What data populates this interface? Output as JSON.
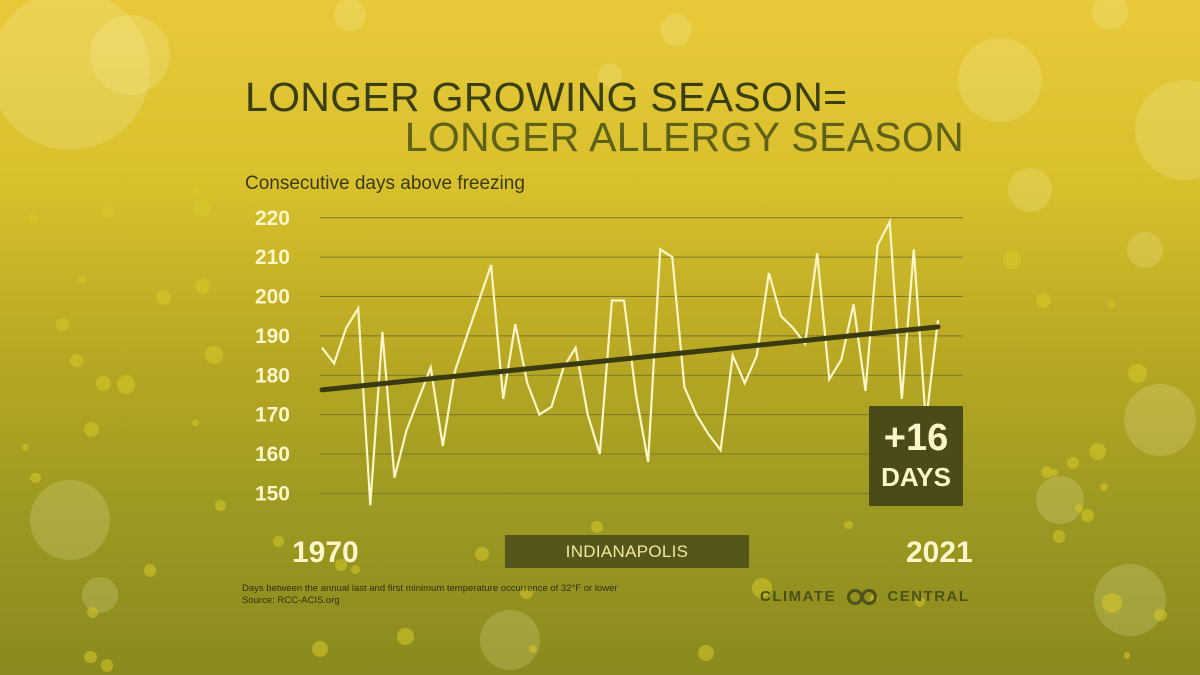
{
  "title": {
    "line1": "LONGER GROWING SEASON=",
    "line2": "LONGER ALLERGY SEASON"
  },
  "subtitle": "Consecutive days above freezing",
  "location": "INDIANAPOLIS",
  "callout": {
    "value": "+16",
    "unit": "DAYS"
  },
  "footnote": {
    "line1": "Days between the annual last and first minimum temperature occurrence of 32°F or lower",
    "line2": "Source: RCC-ACIS.org"
  },
  "logo": {
    "left": "CLIMATE",
    "right": "CENTRAL"
  },
  "colors": {
    "series_line": "#fdf6c8",
    "trend_line": "#3a3a10",
    "grid": "#7a7a2a",
    "callout_bg": "#4a4b16"
  },
  "chart_data": {
    "type": "line",
    "title": "LONGER GROWING SEASON= LONGER ALLERGY SEASON",
    "ylabel": "Consecutive days above freezing",
    "xlabel": "",
    "x_start_label": "1970",
    "x_end_label": "2021",
    "xlim": [
      1970,
      2021
    ],
    "ylim": [
      145,
      222
    ],
    "yticks": [
      150,
      160,
      170,
      180,
      190,
      200,
      210,
      220
    ],
    "grid": true,
    "series": [
      {
        "x": [
          1970,
          1971,
          1972,
          1973,
          1974,
          1975,
          1976,
          1977,
          1978,
          1979,
          1980,
          1981,
          1982,
          1983,
          1984,
          1985,
          1986,
          1987,
          1988,
          1989,
          1990,
          1991,
          1992,
          1993,
          1994,
          1995,
          1996,
          1997,
          1998,
          1999,
          2000,
          2001,
          2002,
          2003,
          2004,
          2005,
          2006,
          2007,
          2008,
          2009,
          2010,
          2011,
          2012,
          2013,
          2014,
          2015,
          2016,
          2017,
          2018,
          2019,
          2020,
          2021
        ],
        "values": [
          187,
          183,
          192,
          197,
          147,
          191,
          154,
          166,
          174,
          182,
          162,
          181,
          190,
          199,
          208,
          174,
          193,
          178,
          170,
          172,
          182,
          187,
          170,
          160,
          199,
          199,
          175,
          158,
          212,
          210,
          177,
          170,
          165,
          161,
          185,
          178,
          185,
          206,
          195,
          192,
          188,
          211,
          179,
          184,
          198,
          176,
          213,
          219,
          174,
          212,
          168,
          194
        ]
      }
    ],
    "trend": {
      "start": 176.3,
      "end": 192.3,
      "change_label": "+16 DAYS"
    }
  }
}
